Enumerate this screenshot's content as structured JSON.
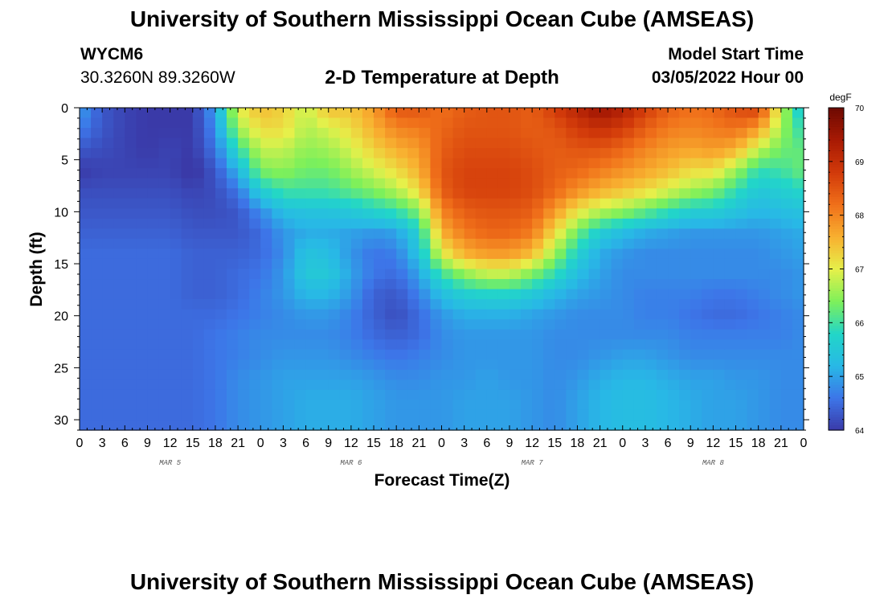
{
  "header": {
    "title": "University of Southern Mississippi Ocean Cube (AMSEAS)",
    "station": "WYCM6",
    "coords": "30.3260N  89.3260W",
    "subtitle": "2-D Temperature at Depth",
    "model_start_label": "Model Start Time",
    "model_start_value": "03/05/2022 Hour 00"
  },
  "footer": {
    "title": "University of Southern Mississippi Ocean Cube (AMSEAS)"
  },
  "chart_data": {
    "type": "heatmap",
    "title": "2-D Temperature at Depth",
    "xlabel": "Forecast Time(Z)",
    "ylabel": "Depth (ft)",
    "x_tick_labels": [
      "0",
      "3",
      "6",
      "9",
      "12",
      "15",
      "18",
      "21",
      "0",
      "3",
      "6",
      "9",
      "12",
      "15",
      "18",
      "21",
      "0",
      "3",
      "6",
      "9",
      "12",
      "15",
      "18",
      "21",
      "0",
      "3",
      "6",
      "9",
      "12",
      "15",
      "18",
      "21",
      "0"
    ],
    "day_labels": [
      "MAR 5",
      "MAR 6",
      "MAR 7",
      "MAR 8"
    ],
    "x_range_hours": [
      0,
      96
    ],
    "y_tick_labels": [
      "0",
      "5",
      "10",
      "15",
      "20",
      "25",
      "30"
    ],
    "y_ticks": [
      0,
      5,
      10,
      15,
      20,
      25,
      30
    ],
    "ylim": [
      0,
      31
    ],
    "y_inverted": true,
    "colorbar": {
      "unit": "degF",
      "ticks": [
        "64",
        "65",
        "66",
        "67",
        "68",
        "69",
        "70"
      ],
      "range": [
        64,
        70
      ],
      "colors": [
        "#3a3aa8",
        "#3d75e8",
        "#28b8e6",
        "#22d6c8",
        "#7ef05a",
        "#e6f04a",
        "#f8b030",
        "#f0701a",
        "#d23a0a",
        "#a81a04",
        "#6e0a02"
      ]
    },
    "grid_hours_step": 3,
    "grid_depths": [
      0,
      2,
      4,
      6,
      8,
      10,
      12,
      14,
      16,
      18,
      20,
      22,
      24,
      26,
      28,
      30
    ],
    "temperature_degF": [
      [
        65.0,
        64.3,
        64.1,
        64.0,
        63.9,
        64.0,
        65.0,
        67.0,
        67.5,
        67.3,
        66.8,
        67.5,
        67.4,
        67.8,
        68.5,
        68.5,
        68.2,
        68.4,
        68.5,
        68.5,
        68.4,
        68.8,
        69.2,
        69.6,
        69.3,
        68.8,
        68.4,
        68.2,
        68.3,
        68.6,
        68.8,
        66.8,
        65.4
      ],
      [
        64.7,
        64.3,
        64.1,
        64.0,
        64.0,
        64.0,
        64.8,
        66.6,
        67.2,
        67.2,
        66.7,
        66.9,
        67.2,
        67.6,
        68.0,
        68.1,
        68.3,
        68.5,
        68.5,
        68.5,
        68.4,
        68.5,
        68.8,
        69.0,
        68.8,
        68.4,
        68.1,
        68.0,
        68.1,
        68.2,
        67.8,
        66.6,
        65.8
      ],
      [
        64.3,
        64.2,
        64.1,
        64.0,
        64.1,
        64.0,
        64.6,
        65.9,
        66.8,
        66.8,
        66.5,
        66.6,
        66.9,
        67.3,
        67.6,
        67.8,
        68.4,
        68.6,
        68.6,
        68.6,
        68.5,
        68.4,
        68.5,
        68.5,
        68.3,
        68.0,
        67.8,
        67.7,
        67.8,
        67.6,
        66.8,
        66.3,
        66.2
      ],
      [
        64.0,
        64.1,
        64.1,
        64.1,
        64.1,
        63.9,
        64.3,
        65.2,
        66.4,
        66.5,
        66.3,
        66.3,
        66.6,
        66.9,
        67.2,
        67.6,
        68.5,
        68.7,
        68.7,
        68.7,
        68.6,
        68.4,
        68.3,
        68.1,
        67.9,
        67.7,
        67.5,
        67.2,
        67.2,
        66.6,
        65.9,
        66.0,
        66.3
      ],
      [
        64.2,
        64.2,
        64.2,
        64.2,
        64.2,
        64.1,
        64.2,
        64.6,
        65.6,
        66.0,
        66.0,
        66.0,
        66.2,
        66.4,
        66.7,
        67.2,
        68.4,
        68.7,
        68.7,
        68.7,
        68.6,
        68.3,
        67.9,
        67.6,
        67.4,
        67.2,
        66.9,
        66.6,
        66.4,
        65.9,
        65.5,
        65.6,
        65.8
      ],
      [
        64.3,
        64.3,
        64.3,
        64.3,
        64.3,
        64.2,
        64.2,
        64.3,
        64.8,
        65.3,
        65.4,
        65.4,
        65.5,
        65.7,
        65.9,
        66.4,
        68.0,
        68.4,
        68.5,
        68.5,
        68.4,
        67.8,
        67.1,
        66.7,
        66.5,
        66.2,
        65.9,
        65.6,
        65.6,
        65.4,
        65.2,
        65.3,
        65.4
      ],
      [
        64.4,
        64.4,
        64.4,
        64.4,
        64.4,
        64.3,
        64.3,
        64.3,
        64.5,
        64.9,
        65.1,
        65.1,
        65.0,
        64.9,
        65.0,
        65.7,
        67.6,
        68.1,
        68.3,
        68.3,
        68.1,
        67.2,
        66.3,
        65.6,
        65.3,
        65.1,
        65.0,
        64.9,
        64.9,
        64.9,
        64.9,
        65.0,
        65.1
      ],
      [
        64.5,
        64.5,
        64.5,
        64.5,
        64.5,
        64.4,
        64.4,
        64.4,
        64.5,
        64.8,
        65.4,
        65.3,
        64.9,
        64.6,
        64.7,
        65.4,
        67.0,
        67.6,
        67.8,
        67.8,
        67.5,
        66.6,
        65.7,
        65.1,
        64.9,
        64.8,
        64.8,
        64.8,
        64.8,
        64.8,
        64.8,
        64.9,
        65.0
      ],
      [
        64.5,
        64.5,
        64.5,
        64.5,
        64.5,
        64.4,
        64.4,
        64.5,
        64.6,
        64.9,
        65.5,
        65.5,
        65.0,
        64.6,
        64.5,
        65.0,
        66.0,
        66.5,
        66.8,
        66.8,
        66.4,
        65.9,
        65.3,
        65.0,
        64.8,
        64.8,
        64.8,
        64.8,
        64.8,
        64.8,
        64.8,
        64.8,
        64.9
      ],
      [
        64.5,
        64.5,
        64.5,
        64.5,
        64.5,
        64.4,
        64.4,
        64.5,
        64.7,
        64.9,
        65.2,
        65.2,
        64.9,
        64.4,
        64.3,
        64.7,
        65.3,
        65.6,
        65.7,
        65.7,
        65.5,
        65.2,
        65.0,
        64.9,
        64.8,
        64.7,
        64.7,
        64.7,
        64.6,
        64.6,
        64.7,
        64.8,
        64.9
      ],
      [
        64.5,
        64.5,
        64.5,
        64.5,
        64.5,
        64.5,
        64.5,
        64.6,
        64.7,
        64.8,
        64.9,
        64.9,
        64.7,
        64.4,
        64.2,
        64.5,
        64.9,
        65.1,
        65.1,
        65.1,
        65.0,
        64.9,
        64.8,
        64.8,
        64.8,
        64.7,
        64.7,
        64.6,
        64.5,
        64.5,
        64.6,
        64.7,
        64.8
      ],
      [
        64.5,
        64.5,
        64.5,
        64.5,
        64.5,
        64.5,
        64.6,
        64.7,
        64.8,
        64.8,
        64.8,
        64.8,
        64.7,
        64.5,
        64.4,
        64.5,
        64.8,
        64.9,
        64.9,
        64.9,
        64.9,
        64.8,
        64.8,
        64.8,
        64.8,
        64.8,
        64.8,
        64.7,
        64.7,
        64.7,
        64.7,
        64.7,
        64.8
      ],
      [
        64.5,
        64.5,
        64.5,
        64.5,
        64.5,
        64.5,
        64.6,
        64.7,
        64.8,
        64.9,
        64.9,
        64.9,
        64.8,
        64.7,
        64.6,
        64.7,
        64.8,
        64.9,
        64.9,
        64.9,
        64.9,
        64.8,
        64.8,
        64.9,
        65.0,
        65.0,
        64.9,
        64.8,
        64.8,
        64.8,
        64.8,
        64.8,
        64.8
      ],
      [
        64.5,
        64.5,
        64.5,
        64.5,
        64.5,
        64.5,
        64.6,
        64.8,
        64.9,
        65.0,
        65.0,
        65.0,
        65.0,
        64.9,
        64.8,
        64.8,
        64.9,
        64.9,
        65.0,
        64.9,
        64.9,
        64.8,
        64.9,
        65.1,
        65.2,
        65.2,
        65.1,
        65.0,
        65.0,
        64.9,
        64.9,
        64.8,
        64.8
      ],
      [
        64.5,
        64.5,
        64.5,
        64.5,
        64.5,
        64.5,
        64.6,
        64.8,
        64.9,
        65.0,
        65.1,
        65.1,
        65.1,
        65.0,
        64.9,
        64.9,
        64.9,
        65.0,
        65.0,
        65.0,
        64.9,
        64.8,
        65.0,
        65.2,
        65.3,
        65.3,
        65.2,
        65.1,
        65.0,
        65.0,
        64.9,
        64.8,
        64.8
      ],
      [
        64.5,
        64.5,
        64.5,
        64.5,
        64.5,
        64.5,
        64.6,
        64.8,
        64.9,
        65.0,
        65.1,
        65.1,
        65.1,
        65.0,
        64.9,
        64.9,
        64.9,
        65.0,
        65.0,
        65.0,
        64.9,
        64.8,
        65.0,
        65.2,
        65.3,
        65.3,
        65.2,
        65.1,
        65.0,
        65.0,
        64.9,
        64.8,
        64.8
      ]
    ]
  }
}
